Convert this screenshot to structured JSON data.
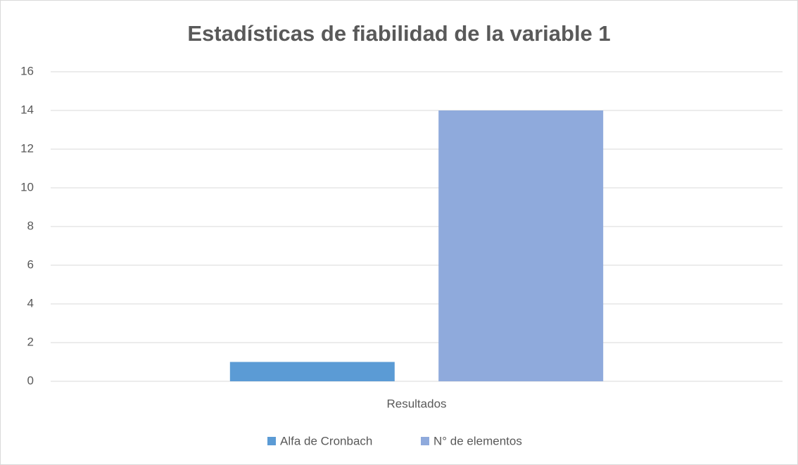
{
  "chart_data": {
    "type": "bar",
    "title": "Estadísticas de fiabilidad de la variable 1",
    "categories": [
      "Resultados"
    ],
    "series": [
      {
        "name": "Alfa de Cronbach",
        "color": "#5b9bd5",
        "values": [
          1
        ]
      },
      {
        "name": "N° de elementos",
        "color": "#8faadc",
        "values": [
          14
        ]
      }
    ],
    "ylim": [
      0,
      16
    ],
    "yticks": [
      0,
      2,
      4,
      6,
      8,
      10,
      12,
      14,
      16
    ],
    "grid": true,
    "legend": "bottom"
  }
}
